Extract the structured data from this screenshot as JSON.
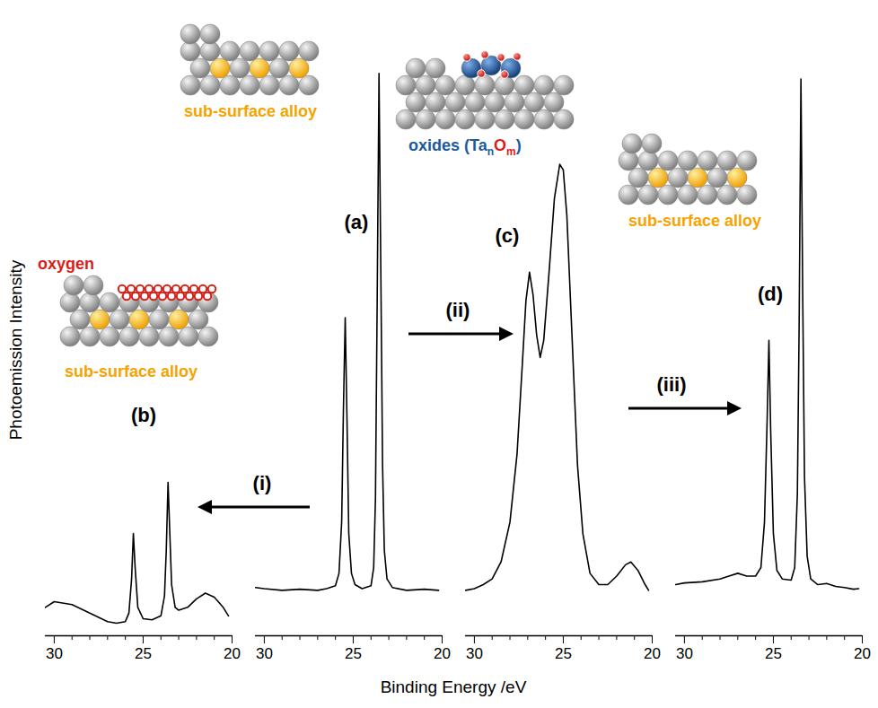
{
  "chart_data": [
    {
      "type": "line",
      "annotation": "(b)",
      "x": [
        30.5,
        30,
        29,
        28,
        27,
        26.5,
        26,
        25.8,
        25.65,
        25.55,
        25.45,
        25.3,
        25,
        24.5,
        24,
        23.8,
        23.7,
        23.6,
        23.5,
        23.4,
        23.2,
        23,
        22.5,
        22,
        21.5,
        21,
        20.5,
        20.2
      ],
      "values": [
        5,
        6,
        5.5,
        4,
        2.5,
        2.2,
        2.5,
        4,
        10,
        18,
        12,
        5,
        3,
        2.8,
        3.5,
        7,
        15,
        27,
        18,
        9,
        5,
        4.5,
        5,
        6.5,
        7.5,
        6.8,
        5,
        3.5
      ],
      "xlim": [
        30.5,
        20
      ],
      "xticks": [
        30,
        25,
        20
      ],
      "ylim": [
        0,
        100
      ],
      "tick_labels": "x",
      "color": "#000000"
    },
    {
      "type": "line",
      "annotation": "(a)",
      "x": [
        30.5,
        30,
        29,
        28,
        27,
        26.5,
        26,
        25.8,
        25.65,
        25.55,
        25.45,
        25.35,
        25.25,
        25.1,
        24.9,
        24.5,
        24,
        23.85,
        23.75,
        23.65,
        23.55,
        23.45,
        23.35,
        23.25,
        23.1,
        22.8,
        22,
        21,
        20.2
      ],
      "values": [
        8.5,
        8.3,
        8,
        8.2,
        8,
        8.3,
        8.8,
        11,
        20,
        40,
        56,
        38,
        18,
        11,
        9,
        8.3,
        8.8,
        12,
        24,
        60,
        99,
        65,
        30,
        15,
        10,
        8.5,
        8,
        8.2,
        8
      ],
      "xlim": [
        30.5,
        20
      ],
      "xticks": [
        30,
        25,
        20
      ],
      "ylim": [
        0,
        100
      ],
      "tick_labels": "x",
      "color": "#000000"
    },
    {
      "type": "line",
      "annotation": "(c)",
      "x": [
        30.5,
        30,
        29.5,
        29,
        28.5,
        28,
        27.6,
        27.3,
        27.1,
        26.9,
        26.7,
        26.5,
        26.3,
        26.1,
        25.8,
        25.5,
        25.2,
        25,
        24.8,
        24.5,
        24.2,
        23.9,
        23.5,
        23,
        22.5,
        22,
        21.5,
        21.2,
        20.8,
        20.4,
        20.2
      ],
      "values": [
        8,
        8.3,
        9,
        10,
        13,
        20,
        32,
        48,
        59,
        64,
        60,
        53,
        49,
        52,
        64,
        77,
        83,
        82,
        74,
        52,
        30,
        18,
        11,
        9,
        9,
        10.5,
        12.5,
        13,
        11.5,
        9,
        8
      ],
      "xlim": [
        30.5,
        20
      ],
      "xticks": [
        30,
        25,
        20
      ],
      "ylim": [
        0,
        100
      ],
      "tick_labels": "x",
      "color": "#000000"
    },
    {
      "type": "line",
      "annotation": "(d)",
      "x": [
        30.5,
        30,
        29,
        28,
        27.5,
        27,
        26.5,
        26,
        25.7,
        25.5,
        25.35,
        25.25,
        25.15,
        25,
        24.8,
        24.5,
        24,
        23.8,
        23.65,
        23.55,
        23.45,
        23.35,
        23.25,
        23.1,
        22.9,
        22.5,
        22,
        21.5,
        21,
        20.5,
        20.2
      ],
      "values": [
        9,
        9.3,
        9.5,
        10,
        10.5,
        11,
        10.5,
        10.5,
        12,
        20,
        38,
        52,
        36,
        18,
        11.5,
        10,
        9.8,
        12,
        25,
        55,
        98,
        60,
        28,
        14,
        10,
        9,
        9.2,
        8.7,
        8.5,
        8.2,
        8.3
      ],
      "xlim": [
        30.5,
        20
      ],
      "xticks": [
        30,
        25,
        20
      ],
      "ylim": [
        0,
        100
      ],
      "tick_labels": "x",
      "color": "#000000"
    }
  ],
  "figure": {
    "xlabel": "Binding Energy /eV",
    "ylabel": "Photoemission Intensity",
    "steps": [
      "(i)",
      "(ii)",
      "(iii)"
    ],
    "illustrations": [
      {
        "labels": [
          {
            "parts": [
              {
                "text": "sub-surface alloy",
                "color": "#f5a300"
              }
            ]
          }
        ]
      },
      {
        "labels": [
          {
            "parts": [
              {
                "text": "oxygen",
                "color": "#d91e18"
              }
            ]
          },
          {
            "parts": [
              {
                "text": "sub-surface alloy",
                "color": "#f5a300"
              }
            ]
          }
        ]
      },
      {
        "labels": [
          {
            "parts": [
              {
                "text": "oxides (Ta",
                "color": "#1c5a9c"
              },
              {
                "text": "n",
                "color": "#1c5a9c",
                "sub": true
              },
              {
                "text": "O",
                "color": "#d91e18"
              },
              {
                "text": "m",
                "color": "#d91e18",
                "sub": true
              },
              {
                "text": ")",
                "color": "#1c5a9c"
              }
            ]
          }
        ]
      },
      {
        "labels": [
          {
            "parts": [
              {
                "text": "sub-surface alloy",
                "color": "#f5a300"
              }
            ]
          }
        ]
      }
    ]
  }
}
